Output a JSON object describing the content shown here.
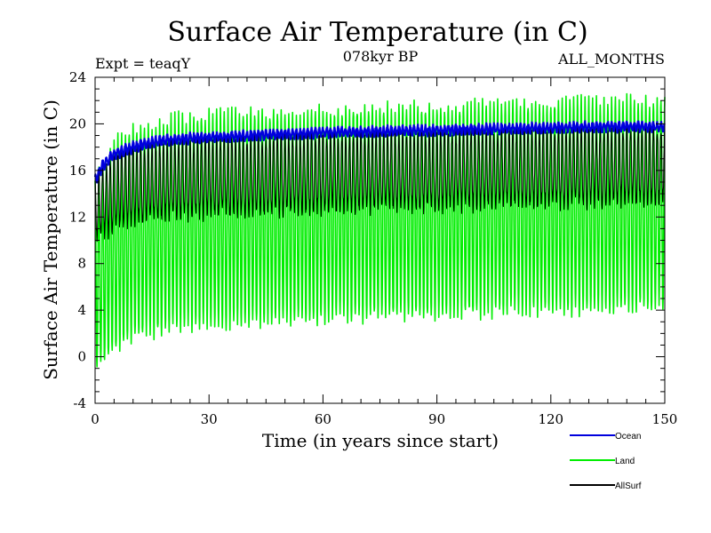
{
  "chart_data": {
    "type": "line",
    "title": "Surface Air Temperature (in C)",
    "subtitle_left": "Expt = teaqY",
    "subtitle_center": "078kyr BP",
    "subtitle_right": "ALL_MONTHS",
    "xlabel": "Time (in years since start)",
    "ylabel": "Surface Air Temperature (in C)",
    "xlim": [
      0,
      150
    ],
    "ylim": [
      -4,
      24
    ],
    "xticks": [
      0,
      30,
      60,
      90,
      120,
      150
    ],
    "xtick_labels": [
      "0",
      "30",
      "60",
      "90",
      "120",
      "150"
    ],
    "yticks": [
      -4,
      0,
      4,
      8,
      12,
      16,
      20,
      24
    ],
    "ytick_labels": [
      "-4",
      "0",
      "4",
      "8",
      "12",
      "16",
      "20",
      "24"
    ],
    "sampling": "monthly",
    "series": [
      {
        "name": "Land",
        "color": "#00ee00",
        "description": "Seasonal cycle oscillating between annual minimum and maximum",
        "years": [
          0,
          5,
          10,
          20,
          30,
          45,
          60,
          75,
          90,
          105,
          120,
          135,
          150
        ],
        "annual_max": [
          15.0,
          18.5,
          19.5,
          20.5,
          20.8,
          21.0,
          21.2,
          21.4,
          21.5,
          21.7,
          21.8,
          22.0,
          22.0
        ],
        "annual_min": [
          -1.5,
          0.5,
          1.5,
          2.5,
          2.8,
          3.0,
          3.2,
          3.4,
          3.6,
          3.8,
          4.0,
          4.0,
          4.2
        ]
      },
      {
        "name": "Ocean",
        "color": "#0000dd",
        "description": "Small seasonal cycle near the top of the range",
        "years": [
          0,
          2,
          5,
          10,
          15,
          20,
          30,
          45,
          60,
          75,
          90,
          105,
          120,
          135,
          150
        ],
        "annual_max": [
          15.5,
          16.8,
          17.8,
          18.4,
          18.8,
          19.0,
          19.2,
          19.4,
          19.6,
          19.7,
          19.8,
          19.9,
          20.0,
          20.1,
          20.1
        ],
        "annual_min": [
          14.8,
          16.0,
          17.0,
          17.6,
          18.0,
          18.3,
          18.5,
          18.7,
          18.9,
          19.0,
          19.1,
          19.2,
          19.3,
          19.4,
          19.4
        ]
      },
      {
        "name": "AllSurf",
        "color": "#000000",
        "description": "Combined surface mean with seasonal cycle",
        "years": [
          0,
          5,
          10,
          20,
          30,
          45,
          60,
          75,
          90,
          105,
          120,
          135,
          150
        ],
        "annual_max": [
          15.0,
          17.5,
          18.0,
          18.5,
          18.7,
          18.9,
          19.0,
          19.2,
          19.3,
          19.4,
          19.5,
          19.6,
          19.7
        ],
        "annual_min": [
          10.0,
          11.0,
          11.6,
          12.0,
          12.2,
          12.4,
          12.6,
          12.7,
          12.8,
          13.0,
          13.1,
          13.2,
          13.3
        ]
      }
    ],
    "legend_order": [
      "Ocean",
      "Land",
      "AllSurf"
    ],
    "legend_position": "bottom-right"
  }
}
